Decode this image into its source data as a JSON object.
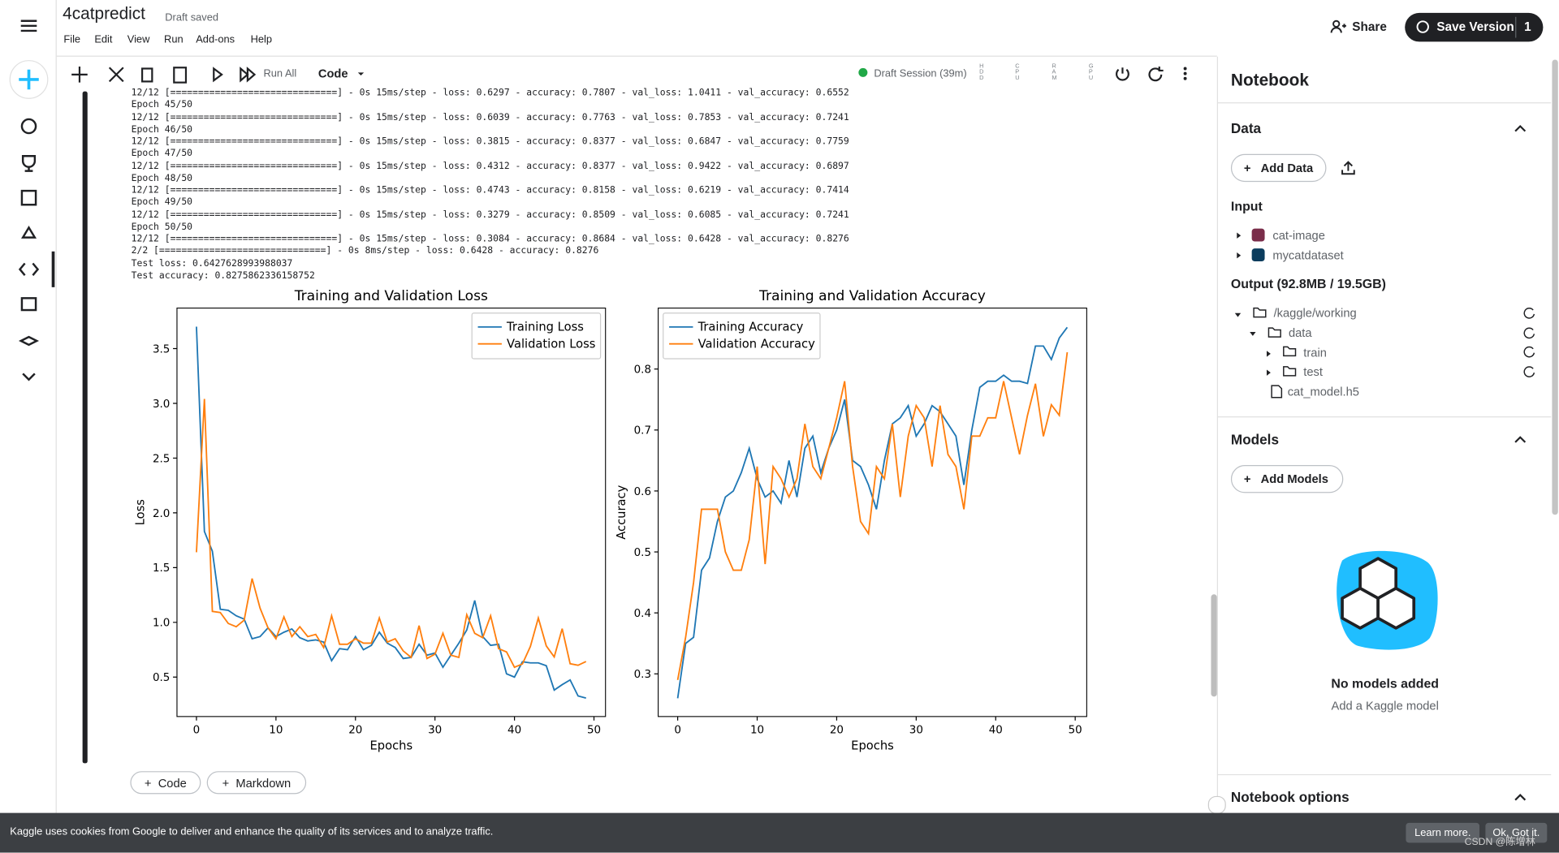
{
  "header": {
    "title": "4catpredict",
    "status": "Draft saved",
    "menu": [
      "File",
      "Edit",
      "View",
      "Run",
      "Add-ons",
      "Help"
    ],
    "share": "Share",
    "save_version": "Save Version",
    "version_count": 1
  },
  "toolbar": {
    "run_all": "Run All",
    "cell_type": "Code",
    "session": "Draft Session (39m)",
    "resources": [
      "HDD",
      "CPU",
      "RAM",
      "GPU"
    ]
  },
  "output": {
    "lines": [
      "12/12 [==============================] - 0s 15ms/step - loss: 0.6297 - accuracy: 0.7807 - val_loss: 1.0411 - val_accuracy: 0.6552",
      "Epoch 45/50",
      "12/12 [==============================] - 0s 15ms/step - loss: 0.6039 - accuracy: 0.7763 - val_loss: 0.7853 - val_accuracy: 0.7241",
      "Epoch 46/50",
      "12/12 [==============================] - 0s 15ms/step - loss: 0.3815 - accuracy: 0.8377 - val_loss: 0.6847 - val_accuracy: 0.7759",
      "Epoch 47/50",
      "12/12 [==============================] - 0s 15ms/step - loss: 0.4312 - accuracy: 0.8377 - val_loss: 0.9422 - val_accuracy: 0.6897",
      "Epoch 48/50",
      "12/12 [==============================] - 0s 15ms/step - loss: 0.4743 - accuracy: 0.8158 - val_loss: 0.6219 - val_accuracy: 0.7414",
      "Epoch 49/50",
      "12/12 [==============================] - 0s 15ms/step - loss: 0.3279 - accuracy: 0.8509 - val_loss: 0.6085 - val_accuracy: 0.7241",
      "Epoch 50/50",
      "12/12 [==============================] - 0s 15ms/step - loss: 0.3084 - accuracy: 0.8684 - val_loss: 0.6428 - val_accuracy: 0.8276",
      "2/2 [==============================] - 0s 8ms/step - loss: 0.6428 - accuracy: 0.8276",
      "Test loss: 0.6427628993988037",
      "Test accuracy: 0.8275862336158752"
    ]
  },
  "chart_data": [
    {
      "type": "line",
      "title": "Training and Validation Loss",
      "xlabel": "Epochs",
      "ylabel": "Loss",
      "x": [
        0,
        1,
        2,
        3,
        4,
        5,
        6,
        7,
        8,
        9,
        10,
        11,
        12,
        13,
        14,
        15,
        16,
        17,
        18,
        19,
        20,
        21,
        22,
        23,
        24,
        25,
        26,
        27,
        28,
        29,
        30,
        31,
        32,
        33,
        34,
        35,
        36,
        37,
        38,
        39,
        40,
        41,
        42,
        43,
        44,
        45,
        46,
        47,
        48,
        49
      ],
      "series": [
        {
          "name": "Training Loss",
          "color": "#1f77b4",
          "values": [
            3.7,
            1.83,
            1.65,
            1.12,
            1.11,
            1.06,
            1.03,
            0.85,
            0.87,
            0.95,
            0.87,
            0.91,
            0.94,
            0.86,
            0.83,
            0.84,
            0.82,
            0.65,
            0.76,
            0.75,
            0.87,
            0.75,
            0.79,
            0.91,
            0.81,
            0.77,
            0.67,
            0.68,
            0.8,
            0.7,
            0.72,
            0.59,
            0.7,
            0.81,
            0.93,
            1.2,
            0.87,
            0.79,
            0.8,
            0.53,
            0.5,
            0.64,
            0.63,
            0.63,
            0.6039,
            0.3815,
            0.4312,
            0.4743,
            0.3279,
            0.3084
          ]
        },
        {
          "name": "Validation Loss",
          "color": "#ff7f0e",
          "values": [
            1.64,
            3.04,
            1.1,
            1.09,
            0.99,
            0.96,
            1.02,
            1.4,
            1.13,
            0.95,
            0.85,
            1.05,
            0.87,
            0.96,
            0.87,
            0.89,
            0.77,
            1.06,
            0.8,
            0.8,
            0.85,
            0.81,
            0.81,
            1.04,
            0.82,
            0.85,
            0.74,
            0.68,
            0.97,
            0.67,
            0.71,
            0.9,
            0.7,
            0.68,
            1.07,
            0.9,
            0.86,
            1.06,
            0.76,
            0.73,
            0.59,
            0.62,
            0.78,
            1.04,
            0.7853,
            0.6847,
            0.9422,
            0.6219,
            0.6085,
            0.6428
          ]
        }
      ],
      "xlim": [
        -2.45,
        51.45
      ],
      "ylim": [
        0.14,
        3.87
      ],
      "xticks": [
        0,
        10,
        20,
        30,
        40,
        50
      ],
      "yticks": [
        0.5,
        {
          "value": 1,
          "label": "1.0"
        },
        1.5,
        {
          "value": 2,
          "label": "2.0"
        },
        2.5,
        {
          "value": 3,
          "label": "3.0"
        },
        3.5
      ],
      "legend": "upper right"
    },
    {
      "type": "line",
      "title": "Training and Validation Accuracy",
      "xlabel": "Epochs",
      "ylabel": "Accuracy",
      "x": [
        0,
        1,
        2,
        3,
        4,
        5,
        6,
        7,
        8,
        9,
        10,
        11,
        12,
        13,
        14,
        15,
        16,
        17,
        18,
        19,
        20,
        21,
        22,
        23,
        24,
        25,
        26,
        27,
        28,
        29,
        30,
        31,
        32,
        33,
        34,
        35,
        36,
        37,
        38,
        39,
        40,
        41,
        42,
        43,
        44,
        45,
        46,
        47,
        48,
        49
      ],
      "series": [
        {
          "name": "Training Accuracy",
          "color": "#1f77b4",
          "values": [
            0.26,
            0.35,
            0.36,
            0.47,
            0.49,
            0.55,
            0.59,
            0.6,
            0.63,
            0.67,
            0.62,
            0.59,
            0.6,
            0.58,
            0.65,
            0.59,
            0.67,
            0.69,
            0.63,
            0.67,
            0.7,
            0.75,
            0.65,
            0.64,
            0.61,
            0.57,
            0.65,
            0.71,
            0.72,
            0.74,
            0.69,
            0.71,
            0.74,
            0.73,
            0.71,
            0.69,
            0.61,
            0.7,
            0.77,
            0.78,
            0.78,
            0.79,
            0.78,
            0.78,
            0.7763,
            0.8377,
            0.8377,
            0.8158,
            0.8509,
            0.8684
          ]
        },
        {
          "name": "Validation Accuracy",
          "color": "#ff7f0e",
          "values": [
            0.29,
            0.36,
            0.45,
            0.57,
            0.57,
            0.57,
            0.5,
            0.47,
            0.47,
            0.52,
            0.64,
            0.48,
            0.64,
            0.62,
            0.59,
            0.62,
            0.71,
            0.64,
            0.62,
            0.67,
            0.72,
            0.78,
            0.64,
            0.55,
            0.53,
            0.64,
            0.62,
            0.71,
            0.59,
            0.69,
            0.74,
            0.72,
            0.64,
            0.74,
            0.66,
            0.64,
            0.57,
            0.69,
            0.69,
            0.72,
            0.72,
            0.78,
            0.72,
            0.66,
            0.7241,
            0.7759,
            0.6897,
            0.7414,
            0.7241,
            0.8276
          ]
        }
      ],
      "xlim": [
        -2.45,
        51.45
      ],
      "ylim": [
        0.23,
        0.9
      ],
      "xticks": [
        0,
        10,
        20,
        30,
        40,
        50
      ],
      "yticks": [
        0.3,
        0.4,
        0.5,
        0.6,
        0.7,
        0.8
      ],
      "legend": "upper left"
    }
  ],
  "cell_buttons": [
    "Code",
    "Markdown"
  ],
  "panel": {
    "title": "Notebook",
    "data": "Data",
    "add_data": "Add Data",
    "input": "Input",
    "inputs": [
      "cat-image",
      "mycatdataset"
    ],
    "output": "Output (92.8MB / 19.5GB)",
    "tree": [
      "/kaggle/working",
      "data",
      "train",
      "test",
      "cat_model.h5"
    ],
    "models": "Models",
    "add_models": "Add Models",
    "empty_title": "No models added",
    "empty_sub": "Add a Kaggle model",
    "options": "Notebook options"
  },
  "cookie": {
    "text": "Kaggle uses cookies from Google to deliver and enhance the quality of its services and to analyze traffic.",
    "learn": "Learn more.",
    "ok": "Ok, Got it."
  },
  "watermark": "CSDN @陈增林"
}
